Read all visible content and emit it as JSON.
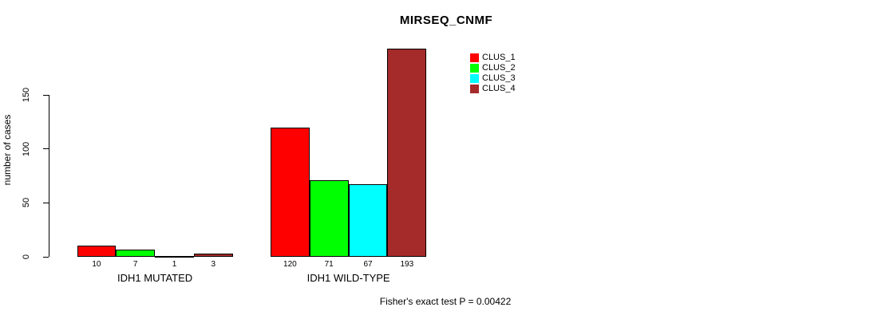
{
  "chart_data": {
    "type": "bar",
    "title": "MIRSEQ_CNMF",
    "ylabel": "number of cases",
    "xlabel": "",
    "footer": "Fisher's exact test P = 0.00422",
    "categories": [
      "IDH1 MUTATED",
      "IDH1 WILD-TYPE"
    ],
    "groups": [
      {
        "label": "IDH1 MUTATED",
        "values": [
          10,
          7,
          1,
          3
        ]
      },
      {
        "label": "IDH1 WILD-TYPE",
        "values": [
          120,
          71,
          67,
          193
        ]
      }
    ],
    "series": [
      {
        "name": "CLUS_1",
        "color": "#FF0000"
      },
      {
        "name": "CLUS_2",
        "color": "#00FF00"
      },
      {
        "name": "CLUS_3",
        "color": "#00FFFF"
      },
      {
        "name": "CLUS_4",
        "color": "#A52A2A"
      }
    ],
    "y_ticks": [
      0,
      50,
      100,
      150
    ],
    "ylim": [
      0,
      150
    ],
    "grid": false,
    "legend_position": "top-right",
    "bar_value_labels_shown": true,
    "axis_color": "#000000",
    "background_color": "#FFFFFF"
  }
}
